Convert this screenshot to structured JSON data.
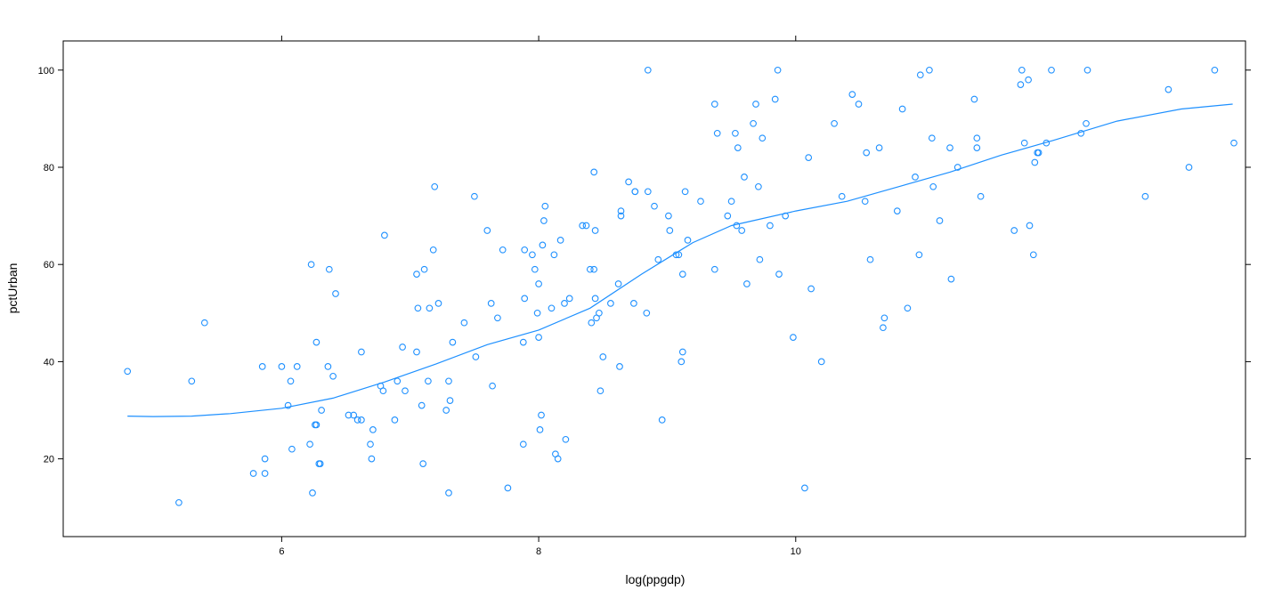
{
  "chart_data": {
    "type": "scatter",
    "title": "",
    "xlabel": "log(ppgdp)",
    "ylabel": "pctUrban",
    "xlim": [
      4.3,
      13.5
    ],
    "ylim": [
      4,
      106
    ],
    "xticks": [
      6,
      8,
      10
    ],
    "yticks": [
      20,
      40,
      60,
      80,
      100
    ],
    "grid": false,
    "series": [
      {
        "type": "points",
        "marker": "open-circle",
        "color": "#1e90ff",
        "points": [
          [
            4.8,
            38
          ],
          [
            5.2,
            11
          ],
          [
            5.3,
            36
          ],
          [
            5.4,
            48
          ],
          [
            5.78,
            17
          ],
          [
            5.85,
            39
          ],
          [
            5.87,
            20
          ],
          [
            5.87,
            17
          ],
          [
            6.0,
            39
          ],
          [
            6.05,
            31
          ],
          [
            6.07,
            36
          ],
          [
            6.08,
            22
          ],
          [
            6.12,
            39
          ],
          [
            6.22,
            23
          ],
          [
            6.23,
            60
          ],
          [
            6.24,
            13
          ],
          [
            6.26,
            27
          ],
          [
            6.27,
            27
          ],
          [
            6.27,
            44
          ],
          [
            6.29,
            19
          ],
          [
            6.3,
            19
          ],
          [
            6.31,
            30
          ],
          [
            6.36,
            39
          ],
          [
            6.37,
            59
          ],
          [
            6.4,
            37
          ],
          [
            6.42,
            54
          ],
          [
            6.52,
            29
          ],
          [
            6.56,
            29
          ],
          [
            6.59,
            28
          ],
          [
            6.62,
            28
          ],
          [
            6.62,
            42
          ],
          [
            6.69,
            23
          ],
          [
            6.7,
            20
          ],
          [
            6.71,
            26
          ],
          [
            6.77,
            35
          ],
          [
            6.79,
            34
          ],
          [
            6.8,
            66
          ],
          [
            6.88,
            28
          ],
          [
            6.9,
            36
          ],
          [
            6.94,
            43
          ],
          [
            6.96,
            34
          ],
          [
            7.05,
            58
          ],
          [
            7.05,
            42
          ],
          [
            7.06,
            51
          ],
          [
            7.09,
            31
          ],
          [
            7.1,
            19
          ],
          [
            7.11,
            59
          ],
          [
            7.14,
            36
          ],
          [
            7.15,
            51
          ],
          [
            7.18,
            63
          ],
          [
            7.19,
            76
          ],
          [
            7.22,
            52
          ],
          [
            7.28,
            30
          ],
          [
            7.3,
            13
          ],
          [
            7.3,
            36
          ],
          [
            7.31,
            32
          ],
          [
            7.33,
            44
          ],
          [
            7.42,
            48
          ],
          [
            7.5,
            74
          ],
          [
            7.51,
            41
          ],
          [
            7.6,
            67
          ],
          [
            7.63,
            52
          ],
          [
            7.64,
            35
          ],
          [
            7.68,
            49
          ],
          [
            7.72,
            63
          ],
          [
            7.76,
            14
          ],
          [
            7.88,
            23
          ],
          [
            7.88,
            44
          ],
          [
            7.89,
            53
          ],
          [
            7.89,
            63
          ],
          [
            7.95,
            62
          ],
          [
            7.97,
            59
          ],
          [
            7.99,
            50
          ],
          [
            8.0,
            56
          ],
          [
            8.0,
            45
          ],
          [
            8.01,
            26
          ],
          [
            8.02,
            29
          ],
          [
            8.03,
            64
          ],
          [
            8.04,
            69
          ],
          [
            8.05,
            72
          ],
          [
            8.1,
            51
          ],
          [
            8.12,
            62
          ],
          [
            8.13,
            21
          ],
          [
            8.15,
            20
          ],
          [
            8.17,
            65
          ],
          [
            8.2,
            52
          ],
          [
            8.21,
            24
          ],
          [
            8.24,
            53
          ],
          [
            8.34,
            68
          ],
          [
            8.37,
            68
          ],
          [
            8.4,
            59
          ],
          [
            8.41,
            48
          ],
          [
            8.43,
            59
          ],
          [
            8.43,
            79
          ],
          [
            8.44,
            67
          ],
          [
            8.44,
            53
          ],
          [
            8.45,
            49
          ],
          [
            8.47,
            50
          ],
          [
            8.48,
            34
          ],
          [
            8.5,
            41
          ],
          [
            8.56,
            52
          ],
          [
            8.62,
            56
          ],
          [
            8.63,
            39
          ],
          [
            8.64,
            71
          ],
          [
            8.64,
            70
          ],
          [
            8.7,
            77
          ],
          [
            8.74,
            52
          ],
          [
            8.75,
            75
          ],
          [
            8.75,
            75
          ],
          [
            8.84,
            50
          ],
          [
            8.85,
            75
          ],
          [
            8.85,
            100
          ],
          [
            8.9,
            72
          ],
          [
            8.93,
            61
          ],
          [
            8.96,
            28
          ],
          [
            9.01,
            70
          ],
          [
            9.02,
            67
          ],
          [
            9.07,
            62
          ],
          [
            9.09,
            62
          ],
          [
            9.11,
            40
          ],
          [
            9.12,
            58
          ],
          [
            9.12,
            42
          ],
          [
            9.14,
            75
          ],
          [
            9.16,
            65
          ],
          [
            9.26,
            73
          ],
          [
            9.37,
            93
          ],
          [
            9.37,
            59
          ],
          [
            9.39,
            87
          ],
          [
            9.47,
            70
          ],
          [
            9.5,
            73
          ],
          [
            9.53,
            87
          ],
          [
            9.54,
            68
          ],
          [
            9.55,
            84
          ],
          [
            9.58,
            67
          ],
          [
            9.6,
            78
          ],
          [
            9.62,
            56
          ],
          [
            9.67,
            89
          ],
          [
            9.69,
            93
          ],
          [
            9.71,
            76
          ],
          [
            9.72,
            61
          ],
          [
            9.74,
            86
          ],
          [
            9.8,
            68
          ],
          [
            9.84,
            94
          ],
          [
            9.86,
            100
          ],
          [
            9.87,
            58
          ],
          [
            9.92,
            70
          ],
          [
            9.98,
            45
          ],
          [
            10.07,
            14
          ],
          [
            10.1,
            82
          ],
          [
            10.12,
            55
          ],
          [
            10.2,
            40
          ],
          [
            10.3,
            89
          ],
          [
            10.36,
            74
          ],
          [
            10.44,
            95
          ],
          [
            10.49,
            93
          ],
          [
            10.54,
            73
          ],
          [
            10.55,
            83
          ],
          [
            10.58,
            61
          ],
          [
            10.65,
            84
          ],
          [
            10.68,
            47
          ],
          [
            10.69,
            49
          ],
          [
            10.79,
            71
          ],
          [
            10.83,
            92
          ],
          [
            10.87,
            51
          ],
          [
            10.93,
            78
          ],
          [
            10.96,
            62
          ],
          [
            10.97,
            99
          ],
          [
            11.04,
            100
          ],
          [
            11.06,
            86
          ],
          [
            11.07,
            76
          ],
          [
            11.12,
            69
          ],
          [
            11.2,
            84
          ],
          [
            11.21,
            57
          ],
          [
            11.26,
            80
          ],
          [
            11.39,
            94
          ],
          [
            11.41,
            86
          ],
          [
            11.41,
            84
          ],
          [
            11.44,
            74
          ],
          [
            11.7,
            67
          ],
          [
            11.75,
            97
          ],
          [
            11.76,
            100
          ],
          [
            11.78,
            85
          ],
          [
            11.81,
            98
          ],
          [
            11.82,
            68
          ],
          [
            11.85,
            62
          ],
          [
            11.86,
            81
          ],
          [
            11.88,
            83
          ],
          [
            11.89,
            83
          ],
          [
            11.95,
            85
          ],
          [
            11.99,
            100
          ],
          [
            12.22,
            87
          ],
          [
            12.26,
            89
          ],
          [
            12.27,
            100
          ],
          [
            12.72,
            74
          ],
          [
            12.9,
            96
          ],
          [
            13.06,
            80
          ],
          [
            13.26,
            100
          ],
          [
            13.41,
            85
          ]
        ]
      },
      {
        "type": "smooth-line",
        "color": "#1e90ff",
        "points": [
          [
            4.8,
            28.8
          ],
          [
            5.0,
            28.7
          ],
          [
            5.3,
            28.8
          ],
          [
            5.6,
            29.3
          ],
          [
            6.0,
            30.4
          ],
          [
            6.4,
            32.5
          ],
          [
            6.8,
            35.8
          ],
          [
            7.2,
            39.5
          ],
          [
            7.6,
            43.5
          ],
          [
            8.0,
            46.5
          ],
          [
            8.4,
            51.0
          ],
          [
            8.8,
            58.0
          ],
          [
            9.2,
            64.5
          ],
          [
            9.5,
            68.0
          ],
          [
            10.0,
            71.0
          ],
          [
            10.4,
            73.0
          ],
          [
            10.8,
            76.0
          ],
          [
            11.2,
            79.0
          ],
          [
            11.6,
            82.5
          ],
          [
            12.0,
            85.5
          ],
          [
            12.5,
            89.5
          ],
          [
            13.0,
            92.0
          ],
          [
            13.4,
            93.0
          ]
        ]
      }
    ]
  }
}
